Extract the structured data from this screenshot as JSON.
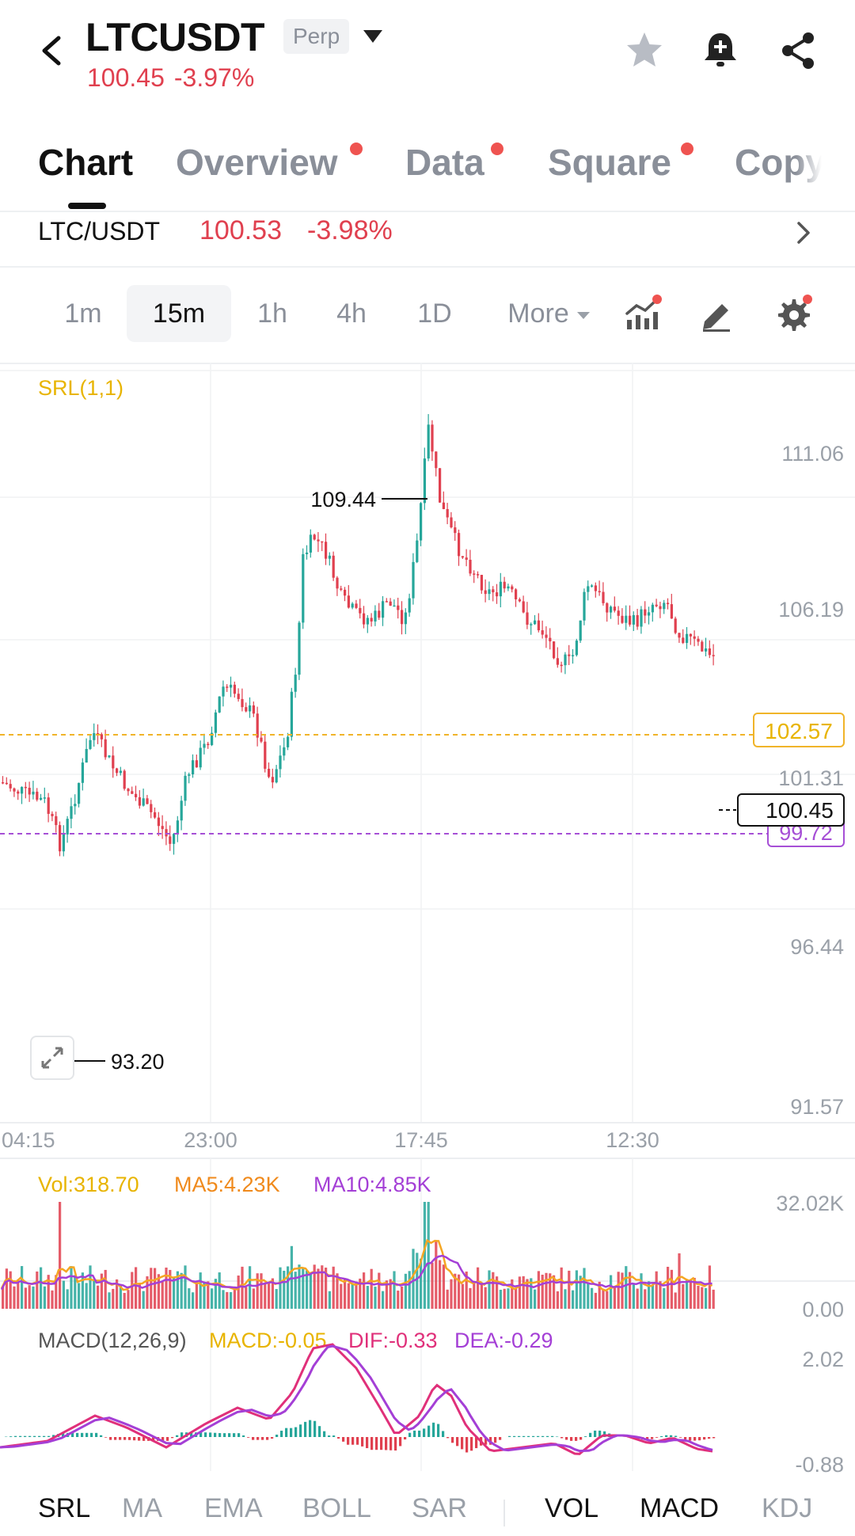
{
  "header": {
    "symbol": "LTCUSDT",
    "badge": "Perp",
    "price": "100.45",
    "change": "-3.97%"
  },
  "tabs": [
    {
      "label": "Chart",
      "active": true,
      "dot": false
    },
    {
      "label": "Overview",
      "active": false,
      "dot": true
    },
    {
      "label": "Data",
      "active": false,
      "dot": true
    },
    {
      "label": "Square",
      "active": false,
      "dot": true
    },
    {
      "label": "Copy",
      "active": false,
      "dot": false
    }
  ],
  "spot": {
    "pair": "LTC/USDT",
    "price": "100.53",
    "change": "-3.98%"
  },
  "timeframes": {
    "items": [
      "1m",
      "15m",
      "1h",
      "4h",
      "1D"
    ],
    "active": "15m",
    "more_label": "More"
  },
  "colors": {
    "up": "#26a69a",
    "down": "#e0404f",
    "srl_upper": "#f0b429",
    "srl_lower": "#a64fd6",
    "ma5": "#f5a623",
    "ma10": "#a43fd6",
    "macd_dif": "#e0307a",
    "macd_dea": "#a43fd6"
  },
  "chart": {
    "indicator_label": "SRL(1,1)",
    "y_ticks": [
      "111.06",
      "106.19",
      "101.31",
      "96.44",
      "91.57"
    ],
    "x_ticks": [
      "04:15",
      "23:00",
      "17:45",
      "12:30"
    ],
    "high_label": "109.44",
    "low_label": "93.20",
    "srl_upper_value": "102.57",
    "srl_lower_value": "99.72",
    "last_price": "100.45"
  },
  "volume": {
    "vol_label": "Vol:318.70",
    "ma5_label": "MA5:4.23K",
    "ma10_label": "MA10:4.85K",
    "y_top": "32.02K",
    "y_bottom": "0.00"
  },
  "macd": {
    "params_label": "MACD(12,26,9)",
    "macd_label": "MACD:-0.05",
    "dif_label": "DIF:-0.33",
    "dea_label": "DEA:-0.29",
    "y_top": "2.02",
    "y_bottom": "-0.88"
  },
  "indicators_bottom": {
    "main": [
      "SRL",
      "MA",
      "EMA",
      "BOLL",
      "SAR"
    ],
    "sub": [
      "VOL",
      "MACD",
      "KDJ"
    ],
    "active_main": "SRL",
    "active_sub": [
      "VOL",
      "MACD"
    ]
  }
}
